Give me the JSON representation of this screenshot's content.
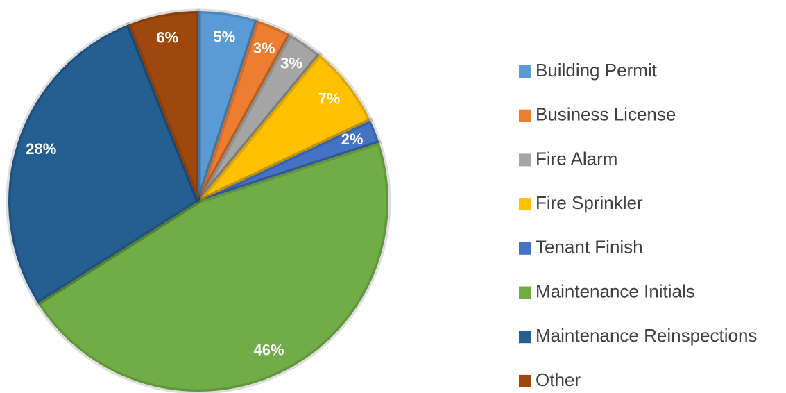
{
  "chart_data": {
    "type": "pie",
    "categories": [
      "Building Permit",
      "Business License",
      "Fire Alarm",
      "Fire Sprinkler",
      "Tenant Finish",
      "Maintenance Initials",
      "Maintenance Reinspections",
      "Other"
    ],
    "values": [
      5,
      3,
      3,
      7,
      2,
      46,
      28,
      6
    ],
    "value_labels": [
      "5%",
      "3%",
      "3%",
      "7%",
      "2%",
      "46%",
      "28%",
      "6%"
    ],
    "colors": [
      "#5b9bd5",
      "#ed7d31",
      "#a5a5a5",
      "#ffc000",
      "#4472c4",
      "#70ad47",
      "#255e91",
      "#9e480e"
    ],
    "legend": "right"
  }
}
